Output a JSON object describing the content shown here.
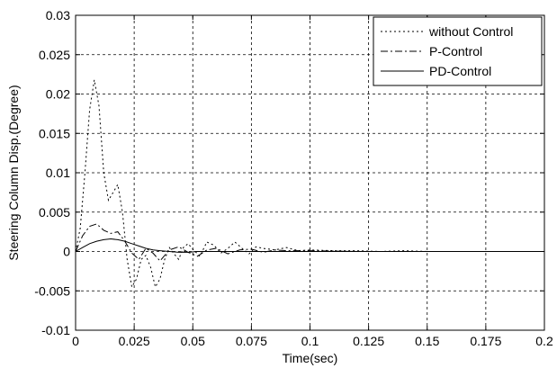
{
  "chart_data": {
    "type": "line",
    "xlabel": "Time(sec)",
    "ylabel": "Steering Column Disp.(Degree)",
    "xlim": [
      0,
      0.2
    ],
    "ylim": [
      -0.01,
      0.03
    ],
    "grid": true,
    "legend_position": "top-right",
    "x_ticks": [
      0,
      0.025,
      0.05,
      0.075,
      0.1,
      0.125,
      0.15,
      0.175,
      0.2
    ],
    "x_tick_labels": [
      "0",
      "0.025",
      "0.05",
      "0.075",
      "0.1",
      "0.125",
      "0.15",
      "0.175",
      "0.2"
    ],
    "y_ticks": [
      -0.01,
      -0.005,
      0,
      0.005,
      0.01,
      0.015,
      0.02,
      0.025,
      0.03
    ],
    "y_tick_labels": [
      "-0.01",
      "-0.005",
      "0",
      "0.005",
      "0.01",
      "0.015",
      "0.02",
      "0.025",
      "0.03"
    ],
    "series": [
      {
        "name": "without Control",
        "style": "dotted",
        "color": "#000000",
        "x": [
          0,
          0.002,
          0.004,
          0.006,
          0.008,
          0.01,
          0.012,
          0.014,
          0.016,
          0.018,
          0.02,
          0.022,
          0.024,
          0.026,
          0.028,
          0.03,
          0.032,
          0.034,
          0.036,
          0.038,
          0.04,
          0.042,
          0.044,
          0.046,
          0.048,
          0.05,
          0.053,
          0.056,
          0.059,
          0.062,
          0.065,
          0.068,
          0.071,
          0.074,
          0.077,
          0.08,
          0.085,
          0.09,
          0.095,
          0.1,
          0.11,
          0.12,
          0.13,
          0.14,
          0.15,
          0.16,
          0.17,
          0.18,
          0.19,
          0.2
        ],
        "y": [
          0,
          0.003,
          0.01,
          0.018,
          0.0218,
          0.0185,
          0.01,
          0.0065,
          0.0075,
          0.0085,
          0.005,
          -0.001,
          -0.0045,
          -0.0035,
          -0.001,
          -0.0005,
          -0.002,
          -0.0045,
          -0.0035,
          -0.001,
          0.0005,
          -0.0003,
          -0.001,
          0.0005,
          0.001,
          0.0003,
          -0.0006,
          0.0012,
          0.0008,
          -0.0002,
          0.0004,
          0.0012,
          0.0004,
          -0.0003,
          0.0006,
          0.0004,
          0.0002,
          0.0005,
          0.0001,
          0.0002,
          0.0001,
          0.0001,
          0,
          0.0001,
          0,
          0,
          0,
          0,
          0,
          0
        ]
      },
      {
        "name": "P-Control",
        "style": "dashdot",
        "color": "#000000",
        "x": [
          0,
          0.003,
          0.006,
          0.009,
          0.012,
          0.015,
          0.018,
          0.021,
          0.024,
          0.027,
          0.03,
          0.033,
          0.036,
          0.04,
          0.044,
          0.048,
          0.052,
          0.056,
          0.06,
          0.065,
          0.07,
          0.075,
          0.08,
          0.085,
          0.09,
          0.1,
          0.12,
          0.14,
          0.16,
          0.18,
          0.2
        ],
        "y": [
          0,
          0.002,
          0.0032,
          0.0035,
          0.0027,
          0.0023,
          0.0025,
          0.0013,
          -0.0002,
          -0.001,
          0.0004,
          -0.0002,
          -0.0012,
          0.0002,
          0.0006,
          -0.0001,
          -0.0006,
          0.0002,
          0.0004,
          -0.0003,
          0.0002,
          0.0003,
          -0.0001,
          0.0002,
          0.0001,
          0.0001,
          0,
          0,
          0,
          0,
          0
        ]
      },
      {
        "name": "PD-Control",
        "style": "solid",
        "color": "#000000",
        "x": [
          0,
          0.003,
          0.006,
          0.009,
          0.012,
          0.015,
          0.018,
          0.021,
          0.024,
          0.027,
          0.03,
          0.033,
          0.036,
          0.04,
          0.044,
          0.048,
          0.052,
          0.056,
          0.06,
          0.07,
          0.08,
          0.1,
          0.12,
          0.15,
          0.2
        ],
        "y": [
          0,
          0.0005,
          0.001,
          0.0013,
          0.0015,
          0.0016,
          0.0015,
          0.0013,
          0.001,
          0.0007,
          0.0004,
          0.0002,
          0.0001,
          0,
          -0.0001,
          -0.0001,
          0,
          0,
          0,
          0,
          0,
          0,
          0,
          0,
          0
        ]
      }
    ]
  }
}
